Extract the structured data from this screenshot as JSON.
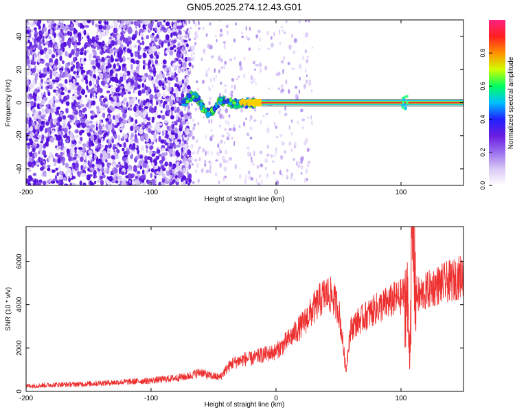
{
  "figure_title": "GN05.2025.274.12.43.G01",
  "chart_data": [
    {
      "type": "heatmap",
      "xlabel": "Height of straight line (km)",
      "ylabel": "Frequency (Hz)",
      "xlim": [
        -200,
        150
      ],
      "ylim": [
        -50,
        50
      ],
      "x_ticks": [
        -200,
        -100,
        0,
        100
      ],
      "y_ticks": [
        -40,
        -20,
        0,
        20,
        40
      ],
      "colorbar": {
        "label": "Normalized spectral amplitude",
        "range": [
          0,
          1
        ],
        "ticks": [
          0.0,
          0.2,
          0.4,
          0.6,
          0.8
        ],
        "tick_labels": [
          "0.0",
          "0.2",
          "0.4",
          "0.6",
          "0.8"
        ],
        "colormap": [
          "#ffffff",
          "#d8c8f5",
          "#9b70ee",
          "#6a1de0",
          "#2020ff",
          "#00c0ff",
          "#00ff60",
          "#d0ff00",
          "#ff9000",
          "#ff2020",
          "#ff2080"
        ]
      },
      "features": {
        "noise_region_x": [
          -200,
          -75
        ],
        "scatter_transition_x": [
          -75,
          -30
        ],
        "signal_line_x": [
          -75,
          150
        ],
        "signal_line_frequency_hz": 0,
        "signal_line_width_hz": 3,
        "disturbance_x": 103
      }
    },
    {
      "type": "line",
      "xlabel": "Height of straight line (km)",
      "ylabel": "SNR (10 * v/v)",
      "xlim": [
        -200,
        150
      ],
      "ylim": [
        0,
        7600
      ],
      "x_ticks": [
        -200,
        -100,
        0,
        100
      ],
      "y_ticks": [
        0,
        2000,
        4000,
        6000
      ],
      "color": "#ee3030",
      "series": [
        {
          "x": [
            -200,
            -190,
            -180,
            -170,
            -160,
            -150,
            -140,
            -130,
            -120,
            -110,
            -100,
            -90,
            -80,
            -70,
            -65,
            -60,
            -55,
            -50,
            -45,
            -40,
            -35,
            -30,
            -25,
            -20,
            -15,
            -10,
            -5,
            0,
            5,
            10,
            15,
            20,
            25,
            30,
            35,
            40,
            45,
            50,
            53,
            56,
            58,
            60,
            65,
            70,
            75,
            80,
            85,
            90,
            95,
            100,
            103,
            105,
            107,
            109,
            112,
            115,
            120,
            125,
            130,
            135,
            140,
            145,
            150
          ],
          "y": [
            250,
            270,
            300,
            320,
            330,
            350,
            380,
            410,
            440,
            470,
            500,
            560,
            620,
            700,
            800,
            900,
            750,
            700,
            650,
            1000,
            1300,
            1400,
            1500,
            1500,
            1600,
            1700,
            1750,
            1850,
            2100,
            2400,
            2700,
            3000,
            3400,
            3800,
            4200,
            4500,
            4400,
            3800,
            2500,
            900,
            2200,
            2900,
            3200,
            3400,
            3600,
            3800,
            3950,
            4100,
            4250,
            4350,
            4500,
            4200,
            1800,
            7600,
            4500,
            4400,
            4600,
            4800,
            4900,
            5000,
            5100,
            5200,
            5400
          ]
        }
      ]
    }
  ]
}
